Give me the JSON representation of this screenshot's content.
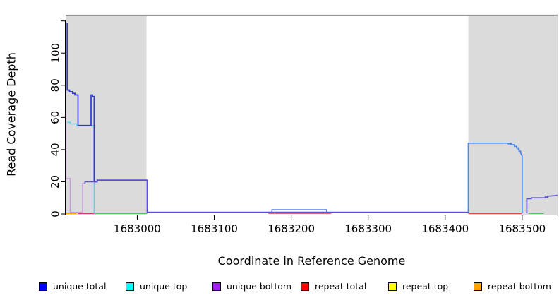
{
  "chart_data": {
    "type": "line",
    "title": "",
    "xlabel": "Coordinate in Reference Genome",
    "ylabel": "Read Coverage Depth",
    "xlim": [
      1682907,
      1683546
    ],
    "ylim": [
      0,
      125
    ],
    "x_ticks": [
      1683000,
      1683100,
      1683200,
      1683300,
      1683400,
      1683500
    ],
    "y_ticks": [
      0,
      20,
      40,
      60,
      80,
      100,
      120
    ],
    "y_tick_labels": [
      "0",
      "20",
      "40",
      "60",
      "80",
      "100",
      ""
    ],
    "grid": false,
    "legend_position": "bottom",
    "masked_regions": [
      {
        "start": 1682907,
        "end": 1683012,
        "color": "#DBDBDB"
      },
      {
        "start": 1683430,
        "end": 1683546,
        "color": "#DBDBDB"
      }
    ],
    "reference_line": {
      "value": 123.5,
      "color": "#979797"
    },
    "series": [
      {
        "name": "unique total",
        "color": "#0000FF",
        "points": [
          [
            1682909,
            119
          ],
          [
            1682910,
            77
          ],
          [
            1682914,
            76
          ],
          [
            1682918,
            75
          ],
          [
            1682921,
            74
          ],
          [
            1682924,
            55
          ],
          [
            1682940,
            55
          ],
          [
            1682940,
            74
          ],
          [
            1682944,
            74
          ],
          [
            1682944,
            20
          ],
          [
            1682948,
            20
          ],
          [
            1682951,
            21
          ],
          [
            1683012,
            21
          ],
          [
            1683012,
            1
          ],
          [
            1683175,
            1
          ],
          [
            1683175,
            3
          ],
          [
            1683246,
            3
          ],
          [
            1683246,
            1
          ],
          [
            1683430,
            1
          ],
          [
            1683430,
            44
          ],
          [
            1683482,
            44
          ],
          [
            1683486,
            43
          ],
          [
            1683490,
            42
          ],
          [
            1683493,
            41
          ],
          [
            1683495,
            40
          ],
          [
            1683497,
            39
          ],
          [
            1683498,
            38
          ],
          [
            1683499,
            37
          ],
          [
            1683500,
            36
          ],
          [
            1683500,
            0
          ],
          [
            1683506,
            0
          ],
          [
            1683506,
            10
          ],
          [
            1683532,
            10
          ],
          [
            1683532,
            11
          ],
          [
            1683546,
            11
          ]
        ]
      },
      {
        "name": "unique top",
        "color": "#00FFFF",
        "points": [
          [
            1682909,
            57
          ],
          [
            1682913,
            56
          ],
          [
            1682921,
            55
          ],
          [
            1682944,
            55
          ],
          [
            1682944,
            0
          ],
          [
            1683546,
            0
          ]
        ]
      },
      {
        "name": "unique bottom",
        "color": "#A020F0",
        "points": [
          [
            1682907,
            62
          ],
          [
            1682907,
            22
          ],
          [
            1682913,
            22
          ],
          [
            1682913,
            1
          ],
          [
            1682929,
            1
          ],
          [
            1682929,
            19
          ],
          [
            1682932,
            20
          ],
          [
            1682948,
            20
          ],
          [
            1682951,
            21
          ],
          [
            1683012,
            21
          ],
          [
            1683012,
            1
          ],
          [
            1683430,
            1
          ],
          [
            1683430,
            0
          ],
          [
            1683506,
            0
          ],
          [
            1683506,
            10
          ],
          [
            1683532,
            10
          ],
          [
            1683532,
            11
          ],
          [
            1683546,
            11
          ]
        ]
      },
      {
        "name": "repeat total",
        "color": "#FF0000",
        "segments": [
          [
            [
              1682923,
              0
            ],
            [
              1682944,
              0
            ]
          ],
          [
            [
              1683170,
              0
            ],
            [
              1683252,
              0
            ]
          ],
          [
            [
              1683430,
              0
            ],
            [
              1683500,
              0
            ]
          ]
        ]
      },
      {
        "name": "repeat top",
        "color": "#FFFF00",
        "segments": [
          [
            [
              1682945,
              0
            ],
            [
              1683013,
              0
            ]
          ],
          [
            [
              1683508,
              0
            ],
            [
              1683528,
              0
            ]
          ]
        ]
      },
      {
        "name": "repeat bottom",
        "color": "#FFA500",
        "segments": [
          [
            [
              1682907,
              0
            ],
            [
              1682921,
              0
            ]
          ]
        ]
      }
    ],
    "render_polylines": [
      {
        "name": "repeat-bottom-zero",
        "color": "#FFA500",
        "w": 1.4,
        "pts": [
          [
            1682907,
            0.3
          ],
          [
            1682921,
            0.3
          ]
        ]
      },
      {
        "name": "repeat-total-left-zero",
        "color": "#D23B68",
        "w": 1.4,
        "pts": [
          [
            1682923,
            0.3
          ],
          [
            1682944,
            0.3
          ]
        ]
      },
      {
        "name": "overlap-green-left-zero",
        "color": "#5BBE6E",
        "w": 1.4,
        "pts": [
          [
            1682945,
            0.3
          ],
          [
            1683013,
            0.3
          ]
        ]
      },
      {
        "name": "repeat-total-mid-zero",
        "color": "#E06A6A",
        "w": 1.4,
        "pts": [
          [
            1683170,
            0.3
          ],
          [
            1683252,
            0.3
          ]
        ]
      },
      {
        "name": "repeat-total-right-zero",
        "color": "#DE4B4B",
        "w": 1.4,
        "pts": [
          [
            1683430,
            0.3
          ],
          [
            1683500,
            0.3
          ]
        ]
      },
      {
        "name": "overlap-green-right-zero",
        "color": "#5BBE6E",
        "w": 1.4,
        "pts": [
          [
            1683508,
            0.3
          ],
          [
            1683528,
            0.3
          ]
        ]
      },
      {
        "name": "unique-top-line",
        "color": "#4FD8E8",
        "w": 1.5,
        "pts": [
          [
            1682909,
            57
          ],
          [
            1682913,
            57
          ],
          [
            1682913,
            56
          ],
          [
            1682921,
            56
          ],
          [
            1682921,
            55
          ],
          [
            1682944,
            55
          ],
          [
            1682944,
            0.5
          ]
        ]
      },
      {
        "name": "unique-bottom-left",
        "color": "#C79CDC",
        "w": 1.5,
        "pts": [
          [
            1682907,
            62
          ],
          [
            1682907,
            22
          ],
          [
            1682913,
            22
          ],
          [
            1682913,
            1
          ],
          [
            1682929,
            1
          ],
          [
            1682929,
            19
          ],
          [
            1682932,
            19
          ]
        ]
      },
      {
        "name": "unique-total-main",
        "color": "#3238D6",
        "w": 1.7,
        "pts": [
          [
            1682909,
            119
          ],
          [
            1682909,
            77
          ],
          [
            1682912,
            77
          ],
          [
            1682912,
            76
          ],
          [
            1682916,
            76
          ],
          [
            1682916,
            75
          ],
          [
            1682919,
            75
          ],
          [
            1682919,
            74
          ],
          [
            1682923,
            74
          ],
          [
            1682923,
            55
          ],
          [
            1682940,
            55
          ],
          [
            1682940,
            74
          ],
          [
            1682942,
            74
          ],
          [
            1682942,
            73
          ],
          [
            1682944,
            73
          ],
          [
            1682944,
            20
          ],
          [
            1682948,
            20
          ],
          [
            1682948,
            21
          ],
          [
            1683013,
            21
          ],
          [
            1683013,
            1
          ],
          [
            1683430,
            1
          ]
        ]
      },
      {
        "name": "unique-total-bump",
        "color": "#4687F0",
        "w": 1.6,
        "pts": [
          [
            1683175,
            1
          ],
          [
            1683175,
            2.6
          ],
          [
            1683246,
            2.6
          ],
          [
            1683246,
            1
          ]
        ]
      },
      {
        "name": "unique-total-plateau",
        "color": "#4687F0",
        "w": 1.7,
        "pts": [
          [
            1683430,
            0.5
          ],
          [
            1683430,
            44
          ],
          [
            1683482,
            44
          ],
          [
            1683482,
            43.5
          ],
          [
            1683486,
            43.5
          ],
          [
            1683486,
            43
          ],
          [
            1683490,
            43
          ],
          [
            1683490,
            42
          ],
          [
            1683493,
            42
          ],
          [
            1683493,
            41
          ],
          [
            1683495,
            41
          ],
          [
            1683495,
            40
          ],
          [
            1683496,
            40
          ],
          [
            1683496,
            39
          ],
          [
            1683498,
            39
          ],
          [
            1683498,
            38
          ],
          [
            1683499,
            37
          ],
          [
            1683500,
            36
          ],
          [
            1683500,
            0.5
          ]
        ]
      },
      {
        "name": "unique-bottom-mid",
        "color": "#5A4FDC",
        "w": 1.6,
        "pts": [
          [
            1682932,
            19
          ],
          [
            1682932,
            20
          ],
          [
            1682948,
            20
          ],
          [
            1682948,
            21
          ],
          [
            1683013,
            21
          ],
          [
            1683013,
            1
          ],
          [
            1683430,
            1
          ]
        ]
      },
      {
        "name": "unique-bottom-tail",
        "color": "#5A4FDC",
        "w": 1.7,
        "pts": [
          [
            1683506,
            0.5
          ],
          [
            1683506,
            9.5
          ],
          [
            1683512,
            9.5
          ],
          [
            1683512,
            10
          ],
          [
            1683530,
            10
          ],
          [
            1683530,
            10.5
          ],
          [
            1683533,
            10.5
          ],
          [
            1683533,
            11
          ],
          [
            1683546,
            11.5
          ]
        ]
      }
    ]
  },
  "axes": {
    "xlabel": "Coordinate in Reference Genome",
    "ylabel": "Read Coverage Depth"
  },
  "legend": {
    "items": [
      {
        "label": "unique total",
        "color": "#0000FF"
      },
      {
        "label": "unique top",
        "color": "#00FFFF"
      },
      {
        "label": "unique bottom",
        "color": "#A020F0"
      },
      {
        "label": "repeat total",
        "color": "#FF0000"
      },
      {
        "label": "repeat top",
        "color": "#FFFF00"
      },
      {
        "label": "repeat bottom",
        "color": "#FFA500"
      }
    ]
  }
}
